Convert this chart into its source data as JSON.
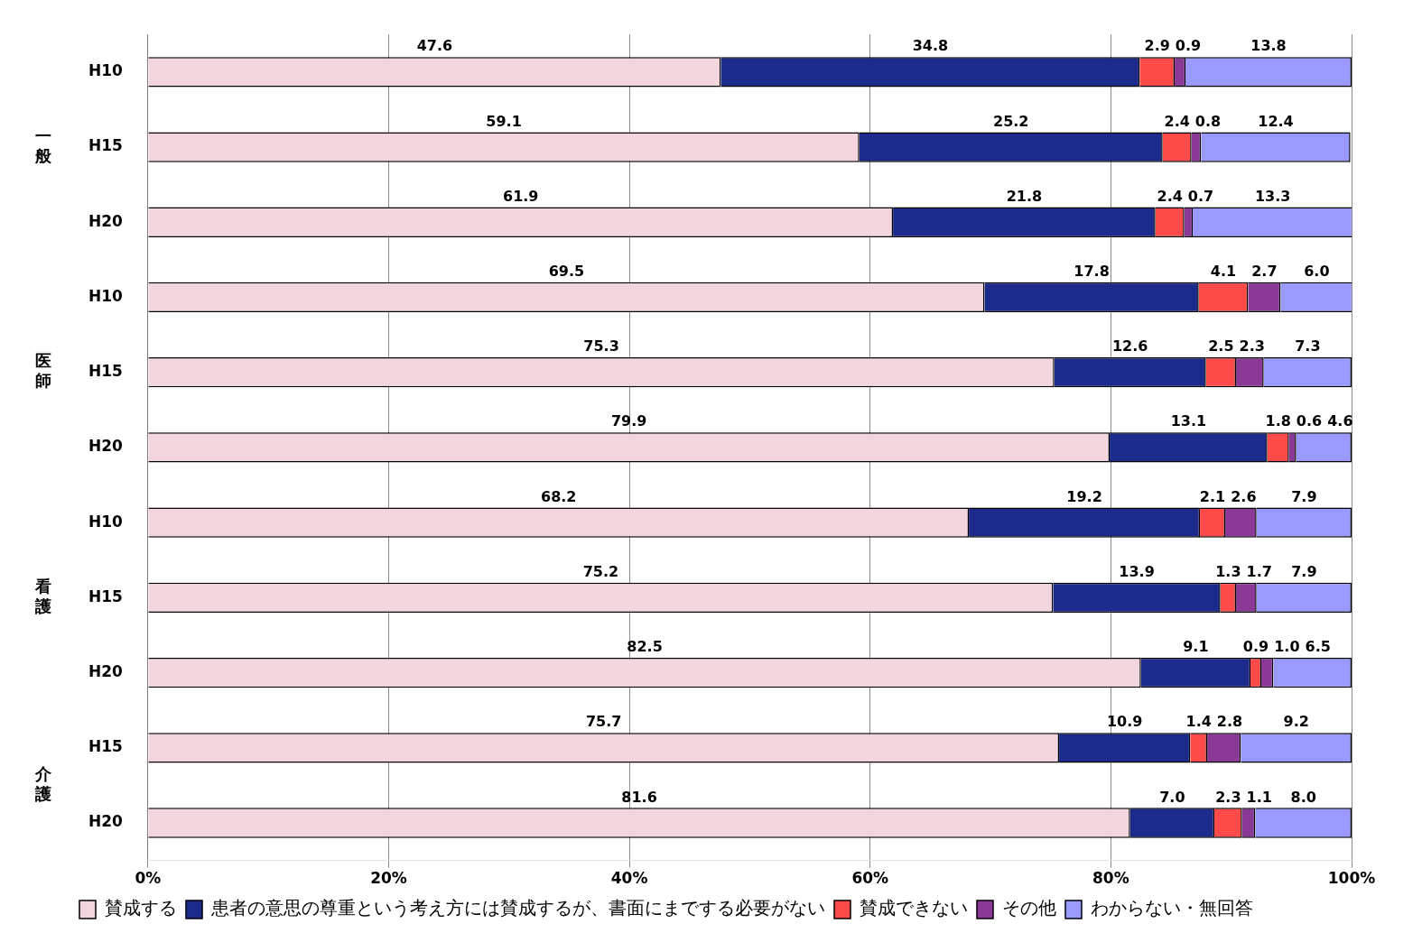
{
  "chart_data": {
    "type": "bar",
    "orientation": "horizontal",
    "stacked": true,
    "categories": [
      "H10",
      "H15",
      "H20",
      "H10",
      "H15",
      "H20",
      "H10",
      "H15",
      "H20",
      "H15",
      "H20"
    ],
    "annotations": [
      "一般",
      "医師",
      "看護",
      "介護"
    ],
    "series": [
      {
        "name": "賛成する",
        "color": "#f3d5de",
        "values": [
          47.6,
          59.1,
          61.9,
          69.5,
          75.3,
          79.9,
          68.2,
          75.2,
          82.5,
          75.7,
          81.6
        ],
        "value_labels": [
          "47.6",
          "59.1",
          "61.9",
          "69.5",
          "75.3",
          "79.9",
          "68.2",
          "75.2",
          "82.5",
          "75.7",
          "81.6"
        ]
      },
      {
        "name": "患者の意思の尊重という考え方には賛成するが、書面にまでする必要がない",
        "color": "#1c2a8c",
        "values": [
          34.8,
          25.2,
          21.8,
          17.8,
          12.6,
          13.1,
          19.2,
          13.9,
          9.1,
          10.9,
          7.0
        ],
        "value_labels": [
          "34.8",
          "25.2",
          "21.8",
          "17.8",
          "12.6",
          "13.1",
          "19.2",
          "13.9",
          "9.1",
          "10.9",
          "7.0"
        ]
      },
      {
        "name": "賛成できない",
        "color": "#ff4a4a",
        "values": [
          2.9,
          2.4,
          2.4,
          4.1,
          2.5,
          1.8,
          2.1,
          1.3,
          0.9,
          1.4,
          2.3
        ],
        "value_labels": [
          "2.9",
          "2.4",
          "2.4",
          "4.1",
          "2.5",
          "1.8",
          "2.1",
          "1.3",
          "0.9",
          "1.4",
          "2.3"
        ]
      },
      {
        "name": "その他",
        "color": "#8a3a96",
        "values": [
          0.9,
          0.8,
          0.7,
          2.7,
          2.3,
          0.6,
          2.6,
          1.7,
          1.0,
          2.8,
          1.1
        ],
        "value_labels": [
          "0.9",
          "0.8",
          "0.7",
          "2.7",
          "2.3",
          "0.6",
          "2.6",
          "1.7",
          "1.0",
          "2.8",
          "1.1"
        ]
      },
      {
        "name": "わからない・無回答",
        "color": "#9999ff",
        "values": [
          13.8,
          12.4,
          13.3,
          6.0,
          7.3,
          4.6,
          7.9,
          7.9,
          6.5,
          9.2,
          8.0
        ],
        "value_labels": [
          "13.8",
          "12.4",
          "13.3",
          "6.0",
          "7.3",
          "4.6",
          "7.9",
          "7.9",
          "6.5",
          "9.2",
          "8.0"
        ]
      }
    ],
    "xlim": [
      0,
      100
    ],
    "xticks": [
      {
        "value": 0,
        "label": "0%"
      },
      {
        "value": 20,
        "label": "20%"
      },
      {
        "value": 40,
        "label": "40%"
      },
      {
        "value": 60,
        "label": "60%"
      },
      {
        "value": 80,
        "label": "80%"
      },
      {
        "value": 100,
        "label": "100%"
      }
    ],
    "grid": "x",
    "legend": "bottom"
  }
}
